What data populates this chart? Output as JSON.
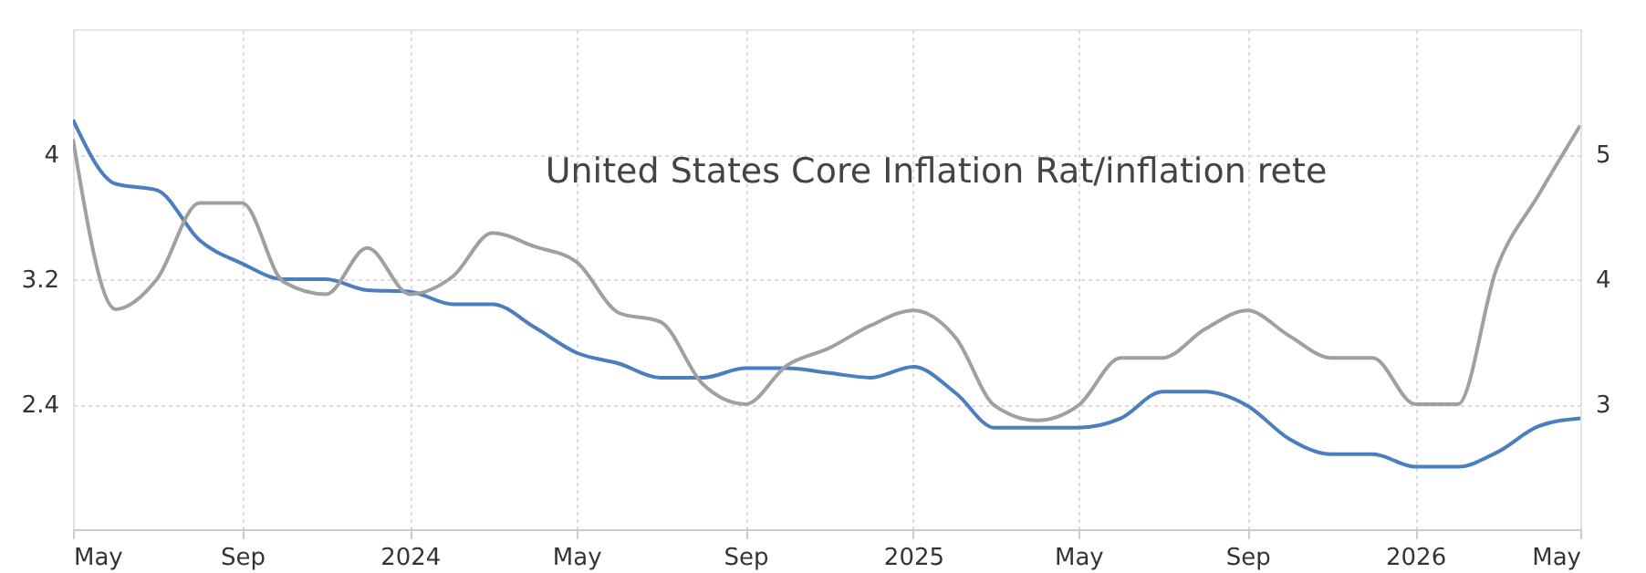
{
  "chart_data": {
    "type": "line",
    "title": "United States Core Inflation Rat/inflation rete",
    "x": [
      "2023-05",
      "2023-06",
      "2023-07",
      "2023-08",
      "2023-09",
      "2023-10",
      "2023-11",
      "2023-12",
      "2024-01",
      "2024-02",
      "2024-03",
      "2024-04",
      "2024-05",
      "2024-06",
      "2024-07",
      "2024-08",
      "2024-09",
      "2024-10",
      "2024-11",
      "2024-12",
      "2025-01",
      "2025-02",
      "2025-03",
      "2025-04",
      "2025-05",
      "2025-06",
      "2025-07",
      "2025-08",
      "2025-09",
      "2025-10",
      "2025-11",
      "2025-12",
      "2026-01",
      "2026-02",
      "2026-03",
      "2026-04",
      "2026-05"
    ],
    "series": [
      {
        "color": "#4a7ebf",
        "values": [
          4.22,
          3.81,
          3.77,
          3.45,
          3.3,
          3.2,
          3.2,
          3.13,
          3.12,
          3.04,
          3.04,
          2.89,
          2.73,
          2.66,
          2.57,
          2.57,
          2.63,
          2.63,
          2.6,
          2.57,
          2.64,
          2.47,
          2.25,
          2.25,
          2.25,
          2.31,
          2.48,
          2.48,
          2.39,
          2.18,
          2.08,
          2.08,
          2.0,
          2.0,
          2.09,
          2.26,
          2.31
        ]
      },
      {
        "color": "#a0a0a0",
        "axis": "y2",
        "values": [
          5.12,
          3.76,
          4.0,
          4.61,
          4.61,
          3.98,
          3.88,
          4.25,
          3.88,
          4.02,
          4.37,
          4.26,
          4.14,
          3.73,
          3.66,
          3.16,
          3.0,
          3.31,
          3.45,
          3.63,
          3.75,
          3.53,
          2.99,
          2.87,
          2.99,
          3.37,
          3.37,
          3.6,
          3.75,
          3.55,
          3.37,
          3.37,
          3.0,
          3.0,
          4.08,
          4.68,
          5.23
        ]
      }
    ],
    "xlim": [
      "2023-05",
      "2026-05"
    ],
    "xticks": [
      {
        "value": "2023-05",
        "label": "May"
      },
      {
        "value": "2023-09",
        "label": "Sep"
      },
      {
        "value": "2024-01",
        "label": "2024"
      },
      {
        "value": "2024-05",
        "label": "May"
      },
      {
        "value": "2024-09",
        "label": "Sep"
      },
      {
        "value": "2025-01",
        "label": "2025"
      },
      {
        "value": "2025-05",
        "label": "May"
      },
      {
        "value": "2025-09",
        "label": "Sep"
      },
      {
        "value": "2026-01",
        "label": "2026"
      },
      {
        "value": "2026-05",
        "label": "May"
      }
    ],
    "ylim": [
      1.6,
      4.8
    ],
    "yticks": [
      2.4,
      3.2,
      4
    ],
    "y2lim": [
      2,
      6
    ],
    "y2ticks": [
      3,
      4,
      5
    ],
    "grid": true,
    "line_style": "solid"
  }
}
